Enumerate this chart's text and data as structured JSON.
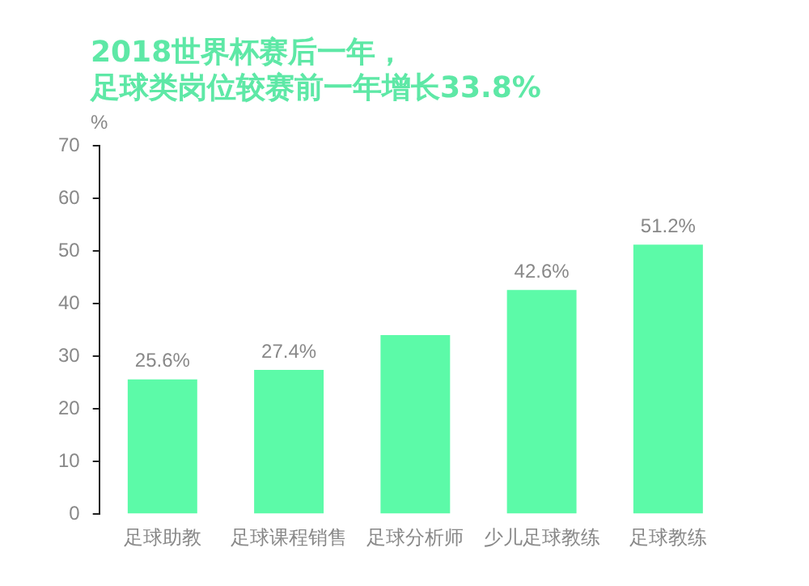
{
  "chart_data": {
    "type": "bar",
    "title": "2018世界杯赛后一年，足球类岗位较赛前一年增长33.8%",
    "ylabel": "%",
    "categories": [
      "足球助教",
      "足球课程销售",
      "足球分析师",
      "少儿足球教练",
      "足球教练"
    ],
    "values": [
      25.6,
      27.4,
      34,
      42.6,
      51.2
    ],
    "value_labels": [
      "25.6%",
      "27.4%",
      null,
      "42.6%",
      "51.2%"
    ],
    "color": "#5cfaa8",
    "ylim": [
      0,
      70
    ],
    "yticks": [
      0,
      10,
      20,
      30,
      40,
      50,
      60,
      70
    ],
    "grid": false,
    "legend": false
  }
}
